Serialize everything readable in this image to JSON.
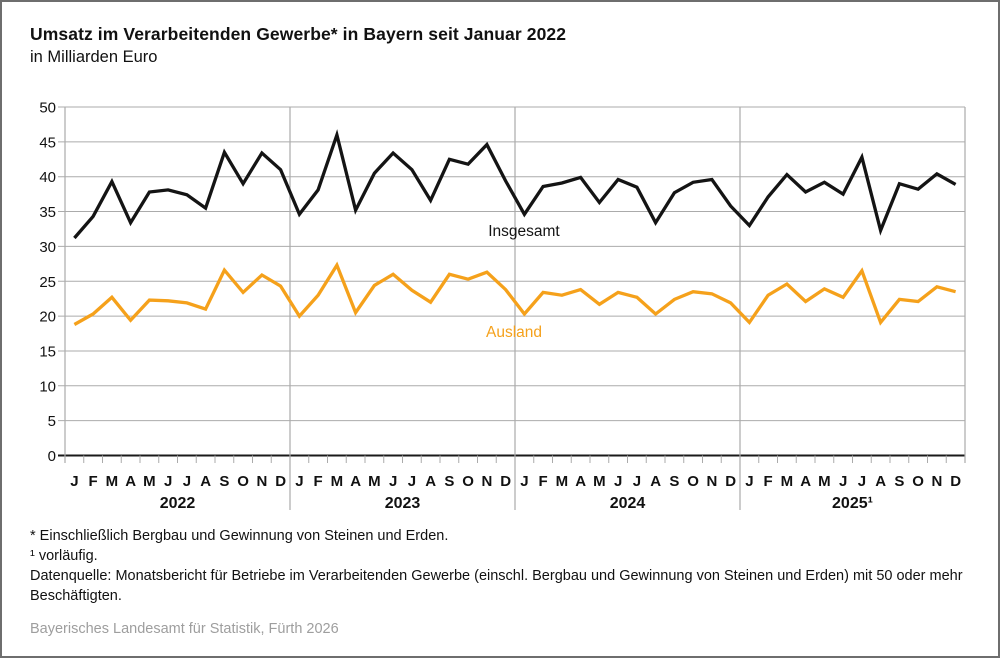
{
  "header": {
    "title": "Umsatz im Verarbeitenden Gewerbe* in Bayern seit Januar 2022",
    "subtitle": "in Milliarden Euro"
  },
  "chart_data": {
    "type": "line",
    "title": "Umsatz im Verarbeitenden Gewerbe* in Bayern seit Januar 2022",
    "ylabel": "in Milliarden Euro",
    "ylim": [
      0,
      50
    ],
    "yticks": [
      0,
      5,
      10,
      15,
      20,
      25,
      30,
      35,
      40,
      45,
      50
    ],
    "grid": "horizontal gray gridlines, gray vertical year dividers, legend as inline labels",
    "years": [
      "2022",
      "2023",
      "2024",
      "2025¹"
    ],
    "month_letters": [
      "J",
      "F",
      "M",
      "A",
      "M",
      "J",
      "J",
      "A",
      "S",
      "O",
      "N",
      "D"
    ],
    "colors": {
      "total_line": "#141414",
      "foreign_line": "#f5a11b",
      "grid": "#ababab",
      "axis": "#1a1a1a"
    },
    "series": [
      {
        "name": "Insgesamt",
        "color": "#141414",
        "values": [
          31.2,
          34.3,
          39.3,
          33.4,
          37.8,
          38.1,
          37.4,
          35.5,
          43.5,
          39.0,
          43.4,
          41.0,
          34.6,
          38.1,
          46.0,
          35.2,
          40.5,
          43.4,
          41.0,
          36.6,
          42.5,
          41.8,
          44.6,
          39.4,
          34.6,
          38.6,
          39.1,
          39.9,
          36.3,
          39.6,
          38.5,
          33.4,
          37.7,
          39.2,
          39.6,
          35.8,
          33.0,
          37.1,
          40.3,
          37.8,
          39.2,
          37.5,
          42.8,
          32.3,
          39.0,
          38.2,
          40.4,
          38.9
        ]
      },
      {
        "name": "Ausland",
        "color": "#f5a11b",
        "values": [
          18.8,
          20.3,
          22.7,
          19.4,
          22.3,
          22.2,
          21.9,
          21.0,
          26.6,
          23.4,
          25.9,
          24.3,
          20.0,
          23.0,
          27.3,
          20.5,
          24.4,
          26.0,
          23.7,
          22.0,
          26.0,
          25.3,
          26.3,
          23.8,
          20.3,
          23.4,
          23.0,
          23.8,
          21.7,
          23.4,
          22.7,
          20.3,
          22.4,
          23.5,
          23.2,
          21.9,
          19.1,
          23.0,
          24.6,
          22.1,
          23.9,
          22.7,
          26.5,
          19.1,
          22.4,
          22.1,
          24.2,
          23.5
        ]
      }
    ]
  },
  "footnotes": {
    "line1": "* Einschließlich Bergbau und Gewinnung von Steinen und Erden.",
    "line2": "¹ vorläufig.",
    "line3": "Datenquelle: Monatsbericht für Betriebe im Verarbeitenden Gewerbe (einschl. Bergbau und Gewinnung von Steinen und Erden) mit 50 oder mehr Beschäftigten."
  },
  "credit": "Bayerisches Landesamt für Statistik, Fürth 2026"
}
